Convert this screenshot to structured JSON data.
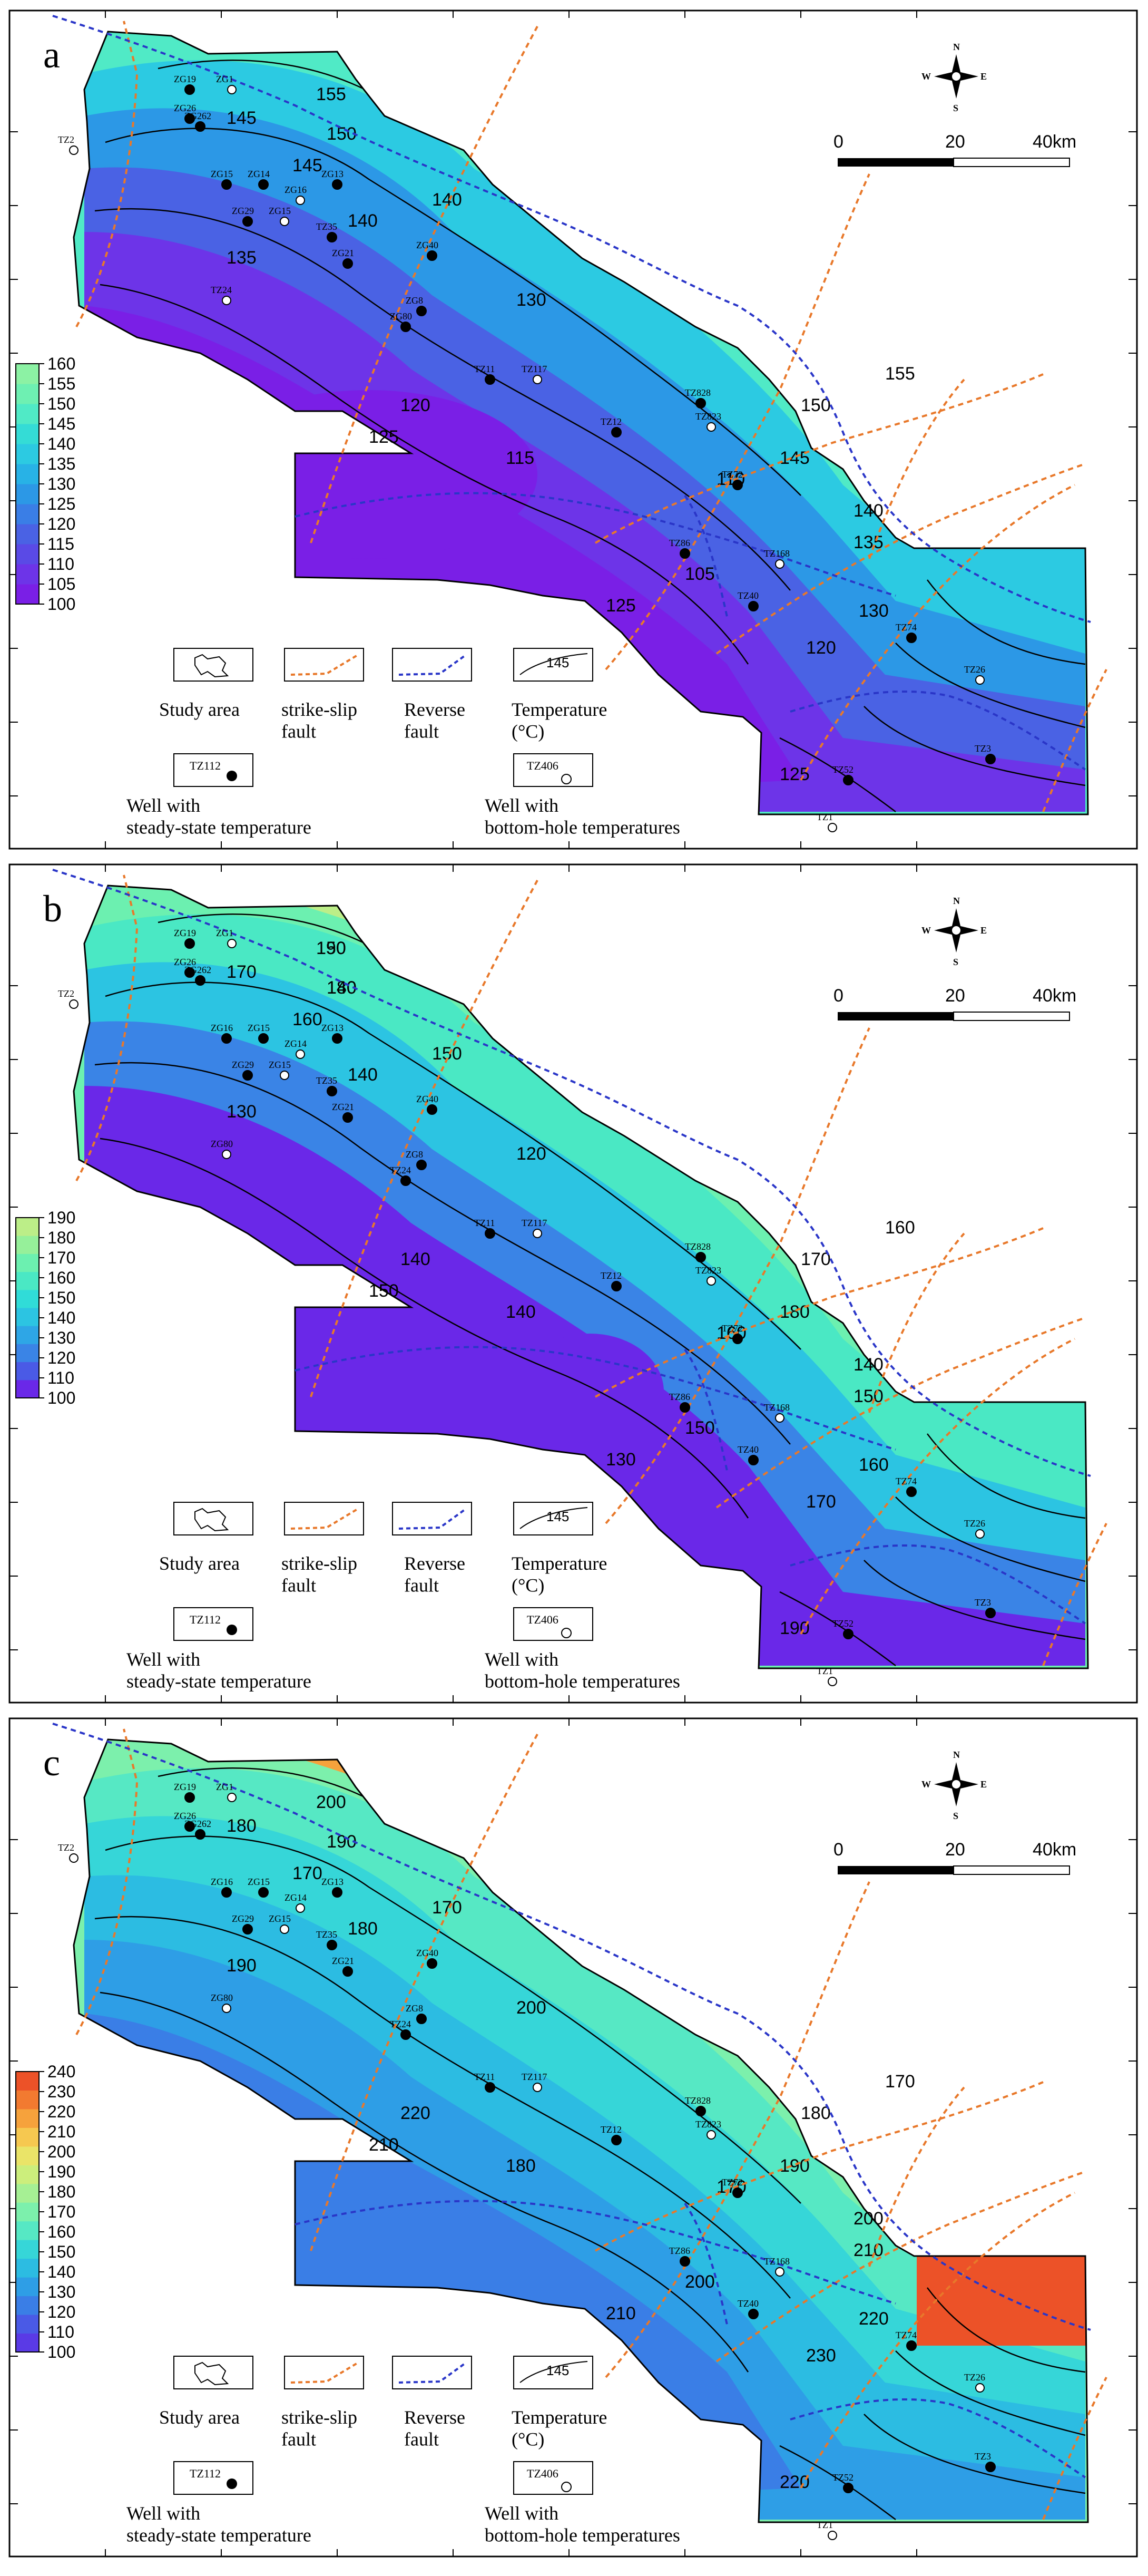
{
  "panels": [
    {
      "letter": "a",
      "colorbar": {
        "labels": [
          "160",
          "155",
          "150",
          "145",
          "140",
          "135",
          "130",
          "125",
          "120",
          "115",
          "110",
          "105",
          "100"
        ]
      },
      "ramp": [
        "#7a1fe6",
        "#6d34e8",
        "#5a4ae6",
        "#4a62e4",
        "#3a7ee6",
        "#2c98e6",
        "#28b2e6",
        "#2ccae2",
        "#34dcd6",
        "#50eac6",
        "#6ef0b2",
        "#8cf2a4"
      ],
      "contour_labels": [
        "155",
        "150",
        "145",
        "145",
        "140",
        "140",
        "135",
        "130",
        "125",
        "120",
        "115",
        "110",
        "105",
        "125",
        "125",
        "120",
        "130",
        "135",
        "140",
        "145",
        "150",
        "155"
      ],
      "wells": [
        "ZG19",
        "ZG1",
        "ZG26",
        "ZG262",
        "TZ2",
        "ZG15",
        "ZG14",
        "ZG16",
        "ZG13",
        "ZG29",
        "ZG15",
        "TZ35",
        "ZG21",
        "TZ24",
        "ZG80",
        "TZ11",
        "TZ117",
        "TZ12",
        "TZ828",
        "TZ823",
        "TZ72",
        "TZ86",
        "TZ168",
        "TZ40",
        "TZ74",
        "TZ26",
        "TZ52",
        "TZ3",
        "TZ1",
        "ZG40",
        "ZG8"
      ],
      "compass": {
        "n": "N",
        "s": "S",
        "e": "E",
        "w": "W"
      },
      "scale": {
        "labels": [
          "0",
          "20",
          "40km"
        ]
      },
      "legend": {
        "study_area": "Study area",
        "strike_slip": "strike-slip\nfault",
        "reverse": "Reverse\nfault",
        "temperature": "Temperature\n(°C)",
        "temp_sample": "145",
        "steady_code": "TZ112",
        "steady_label": "Well with\nsteady-state temperature",
        "bht_code": "TZ406",
        "bht_label": "Well  with\nbottom-hole temperatures"
      }
    },
    {
      "letter": "b",
      "colorbar": {
        "labels": [
          "190",
          "180",
          "170",
          "160",
          "150",
          "140",
          "130",
          "120",
          "110",
          "100"
        ]
      },
      "ramp": [
        "#6a28e8",
        "#4a5ae6",
        "#3a84e6",
        "#2ea6e6",
        "#2cc4e2",
        "#30dcd8",
        "#4ae8c4",
        "#6cf0b0",
        "#96f09a",
        "#bcee88"
      ],
      "contour_labels": [
        "190",
        "180",
        "170",
        "160",
        "150",
        "140",
        "130",
        "120",
        "150",
        "140",
        "140",
        "160",
        "150",
        "130",
        "190",
        "170",
        "160",
        "150",
        "140",
        "180",
        "170",
        "160",
        "150",
        "140"
      ],
      "wells": [
        "ZG19",
        "ZG1",
        "ZG26",
        "ZG262",
        "TZ2",
        "ZG16",
        "ZG15",
        "ZG14",
        "ZG13",
        "ZG29",
        "ZG15",
        "TZ35",
        "ZG21",
        "ZG80",
        "TZ24",
        "TZ11",
        "TZ117",
        "TZ12",
        "TZ828",
        "TZ823",
        "TZ72",
        "TZ86",
        "TZ168",
        "TZ40",
        "TZ74",
        "TZ26",
        "TZ52",
        "TZ3",
        "TZ1",
        "ZG40",
        "ZG8"
      ],
      "compass": {
        "n": "N",
        "s": "S",
        "e": "E",
        "w": "W"
      },
      "scale": {
        "labels": [
          "0",
          "20",
          "40km"
        ]
      },
      "legend": {
        "study_area": "Study area",
        "strike_slip": "strike-slip\nfault",
        "reverse": "Reverse\nfault",
        "temperature": "Temperature\n(°C)",
        "temp_sample": "145",
        "steady_code": "TZ112",
        "steady_label": "Well with\nsteady-state temperature",
        "bht_code": "TZ406",
        "bht_label": "Well  with\nbottom-hole temperatures"
      }
    },
    {
      "letter": "c",
      "colorbar": {
        "labels": [
          "240",
          "230",
          "220",
          "210",
          "200",
          "190",
          "180",
          "170",
          "160",
          "150",
          "140",
          "130",
          "120",
          "110",
          "100"
        ]
      },
      "ramp": [
        "#5a3ae6",
        "#4a5ae6",
        "#3a7ee6",
        "#2e9ee6",
        "#2cbce2",
        "#36d6d8",
        "#56e8c4",
        "#7cf0ac",
        "#a6f094",
        "#ccee7c",
        "#eae468",
        "#f6c850",
        "#f6a23c",
        "#f27a30",
        "#ec5228"
      ],
      "contour_labels": [
        "200",
        "190",
        "180",
        "170",
        "170",
        "180",
        "190",
        "200",
        "210",
        "220",
        "180",
        "170",
        "200",
        "210",
        "220",
        "230",
        "220",
        "210",
        "200",
        "190",
        "180",
        "170"
      ],
      "wells": [
        "ZG19",
        "ZG1",
        "ZG26",
        "ZG262",
        "TZ2",
        "ZG16",
        "ZG15",
        "ZG14",
        "ZG13",
        "ZG29",
        "ZG15",
        "TZ35",
        "ZG21",
        "ZG80",
        "TZ24",
        "TZ11",
        "TZ117",
        "TZ12",
        "TZ828",
        "TZ823",
        "TZ72",
        "TZ86",
        "TZ168",
        "TZ40",
        "TZ74",
        "TZ26",
        "TZ52",
        "TZ3",
        "TZ1",
        "ZG40",
        "ZG8"
      ],
      "compass": {
        "n": "N",
        "s": "S",
        "e": "E",
        "w": "W"
      },
      "scale": {
        "labels": [
          "0",
          "20",
          "40km"
        ]
      },
      "legend": {
        "study_area": "Study area",
        "strike_slip": "strike-slip\nfault",
        "reverse": "Reverse\nfault",
        "temperature": "Temperature\n(°C)",
        "temp_sample": "145",
        "steady_code": "TZ112",
        "steady_label": "Well with\nsteady-state temperature",
        "bht_code": "TZ406",
        "bht_label": "Well  with\nbottom-hole temperatures"
      }
    }
  ]
}
